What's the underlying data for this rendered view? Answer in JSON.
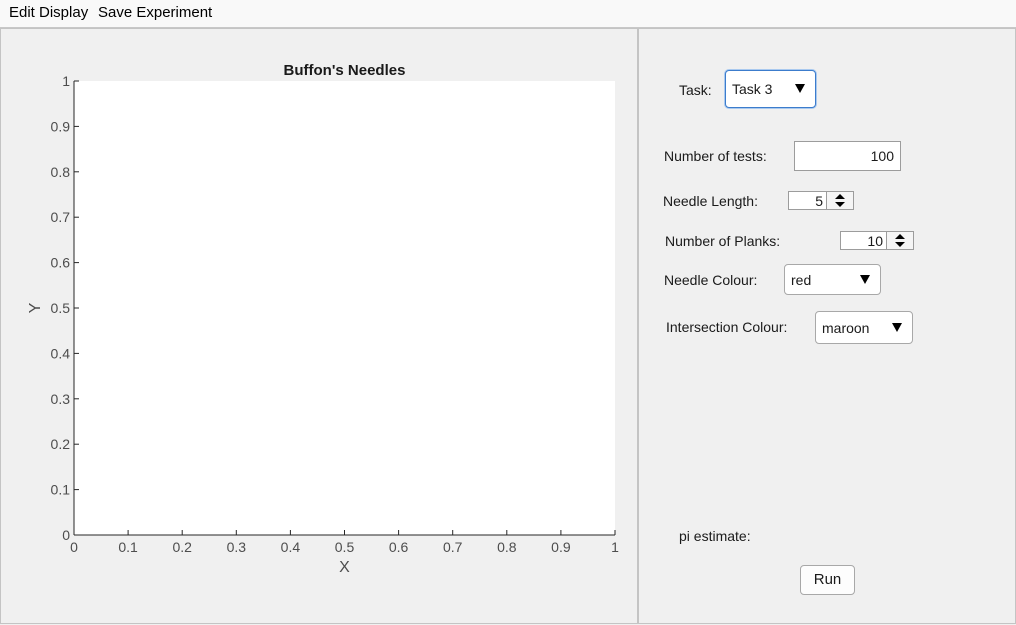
{
  "menubar": {
    "items": [
      "Edit Display",
      "Save Experiment"
    ]
  },
  "chart_data": {
    "type": "scatter",
    "title": "Buffon's Needles",
    "xlabel": "X",
    "ylabel": "Y",
    "xlim": [
      0,
      1
    ],
    "ylim": [
      0,
      1
    ],
    "xticks": [
      "0",
      "0.1",
      "0.2",
      "0.3",
      "0.4",
      "0.5",
      "0.6",
      "0.7",
      "0.8",
      "0.9",
      "1"
    ],
    "yticks": [
      "0",
      "0.1",
      "0.2",
      "0.3",
      "0.4",
      "0.5",
      "0.6",
      "0.7",
      "0.8",
      "0.9",
      "1"
    ],
    "series": [],
    "grid": false
  },
  "controls": {
    "task": {
      "label": "Task:",
      "value": "Task 3"
    },
    "num_tests": {
      "label": "Number of tests:",
      "value": "100"
    },
    "needle_length": {
      "label": "Needle Length:",
      "value": "5"
    },
    "num_planks": {
      "label": "Number of Planks:",
      "value": "10"
    },
    "needle_colour": {
      "label": "Needle Colour:",
      "value": "red"
    },
    "intersection_colour": {
      "label": "Intersection Colour:",
      "value": "maroon"
    },
    "pi_estimate": {
      "label": "pi estimate:",
      "value": ""
    },
    "run_label": "Run"
  }
}
